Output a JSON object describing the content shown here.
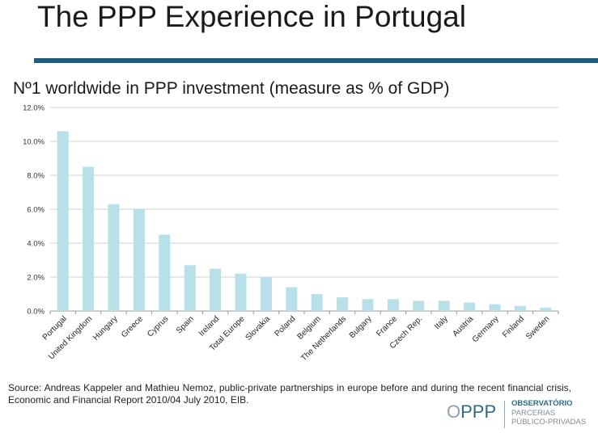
{
  "slide": {
    "title": "The PPP Experience in Portugal",
    "chart_heading": "Nº1 worldwide in PPP investment (measure as % of GDP)",
    "source": "Source: Andreas Kappeler and Mathieu Nemoz, public-private partnerships in europe before and during the recent financial crisis, Economic and Financial Report 2010/04 July 2010, EIB.",
    "accent_color": "#1f5b7a"
  },
  "logo": {
    "mark_o": "O",
    "mark_ppp": "PPP",
    "line1": "OBSERVATÓRIO",
    "line2": "PARCERIAS",
    "line3": "PÚBLICO-PRIVADAS"
  },
  "chart_data": {
    "type": "bar",
    "title": "Nº1 worldwide in PPP investment (measure as % of GDP)",
    "xlabel": "",
    "ylabel": "",
    "categories": [
      "Portugal",
      "United Kingdom",
      "Hungary",
      "Greece",
      "Cyprus",
      "Spain",
      "Ireland",
      "Total Europe",
      "Slovakia",
      "Poland",
      "Belgium",
      "The Netherlands",
      "Bulgary",
      "France",
      "Czech Rep.",
      "Italy",
      "Austria",
      "Germany",
      "Finland",
      "Sweden"
    ],
    "values": [
      10.6,
      8.5,
      6.3,
      6.0,
      4.5,
      2.7,
      2.5,
      2.2,
      2.0,
      1.4,
      1.0,
      0.8,
      0.7,
      0.7,
      0.6,
      0.6,
      0.5,
      0.4,
      0.3,
      0.2
    ],
    "ylim": [
      0,
      12
    ],
    "yticks": [
      0,
      2,
      4,
      6,
      8,
      10,
      12
    ],
    "ytick_labels": [
      "0.0%",
      "2.0%",
      "4.0%",
      "6.0%",
      "8.0%",
      "10.0%",
      "12.0%"
    ],
    "grid": true,
    "legend": "none",
    "bar_color": "#b7e0e8",
    "grid_color": "#cfcfcf"
  }
}
